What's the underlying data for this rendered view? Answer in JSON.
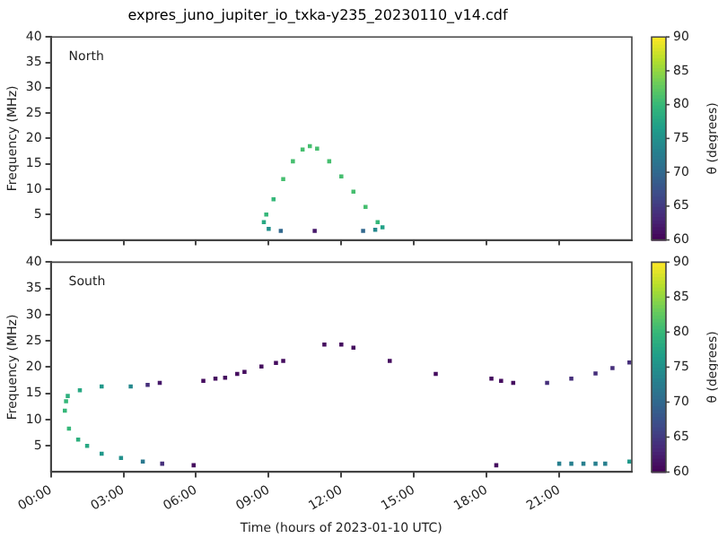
{
  "chart_data": [
    {
      "type": "scatter",
      "title": "expres_juno_jupiter_io_txka-y235_20230110_v14.cdf",
      "ylabel": "Frequency (MHz)",
      "clabel": "θ (degrees)",
      "annotations": [
        "North"
      ],
      "x": [
        8.8,
        8.9,
        9.2,
        9.6,
        10.0,
        10.4,
        10.7,
        11.0,
        11.5,
        12.0,
        12.5,
        13.0,
        13.5,
        13.7,
        13.4,
        12.9,
        10.9,
        9.5,
        9.0
      ],
      "values": [
        3.5,
        5,
        8,
        12,
        15.5,
        17.8,
        18.5,
        18,
        15.5,
        12.5,
        9.5,
        6.5,
        3.5,
        2.5,
        2,
        1.8,
        1.8,
        1.8,
        2.2
      ],
      "cvalues": [
        78,
        80,
        80,
        81,
        81,
        81,
        81,
        81,
        81,
        81,
        81,
        81,
        80,
        77,
        74,
        70,
        62,
        70,
        75
      ],
      "xlim": [
        0,
        24
      ],
      "xticks": [
        {
          "value": 0,
          "label": null
        },
        {
          "value": 3,
          "label": null
        },
        {
          "value": 6,
          "label": null
        },
        {
          "value": 9,
          "label": null
        },
        {
          "value": 12,
          "label": null
        },
        {
          "value": 15,
          "label": null
        },
        {
          "value": 18,
          "label": null
        },
        {
          "value": 21,
          "label": null
        }
      ],
      "ylim": [
        0,
        40
      ],
      "yticks": [
        5,
        10,
        15,
        20,
        25,
        30,
        35,
        40
      ],
      "clim": [
        60,
        90
      ],
      "cticks": [
        60,
        65,
        70,
        75,
        80,
        85,
        90
      ],
      "tick_labels": "y",
      "marker": "square"
    },
    {
      "type": "scatter",
      "xlabel": "Time (hours of 2023-01-10 UTC)",
      "ylabel": "Frequency (MHz)",
      "clabel": "θ (degrees)",
      "annotations": [
        "South"
      ],
      "x": [
        0.58,
        0.63,
        0.75,
        1.13,
        1.5,
        2.1,
        2.9,
        3.8,
        4.6,
        5.9,
        0.7,
        1.2,
        2.1,
        3.3,
        4.0,
        4.5,
        6.3,
        6.8,
        7.2,
        7.7,
        8.0,
        8.7,
        9.3,
        9.6,
        11.3,
        12.0,
        12.5,
        14.0,
        15.9,
        18.2,
        18.6,
        19.1,
        20.5,
        21.5,
        22.5,
        23.2,
        23.9,
        18.4,
        21.0,
        21.5,
        22.0,
        22.5,
        22.9,
        23.9
      ],
      "values": [
        11.7,
        13.5,
        8.3,
        6.2,
        5,
        3.5,
        2.7,
        2,
        1.6,
        1.3,
        14.5,
        15.6,
        16.3,
        16.3,
        16.6,
        17,
        17.4,
        17.8,
        18,
        18.7,
        19.1,
        20.1,
        20.8,
        21.2,
        24.3,
        24.3,
        23.7,
        21.2,
        18.7,
        17.8,
        17.4,
        17,
        17,
        17.8,
        18.8,
        19.8,
        20.9,
        1.3,
        1.6,
        1.6,
        1.6,
        1.6,
        1.6,
        2
      ],
      "cvalues": [
        80,
        80,
        80,
        79,
        78,
        76,
        75,
        72,
        64,
        61,
        79,
        78,
        76,
        74,
        64,
        62,
        61,
        61,
        61,
        61,
        61,
        61,
        61,
        61,
        61,
        61,
        61,
        61,
        61,
        61,
        61,
        61,
        64,
        64,
        64,
        64,
        64,
        61,
        73,
        73,
        73,
        73,
        73,
        76
      ],
      "xlim": [
        0,
        24
      ],
      "xticks": [
        {
          "value": 0,
          "label": "00:00"
        },
        {
          "value": 3,
          "label": "03:00"
        },
        {
          "value": 6,
          "label": "06:00"
        },
        {
          "value": 9,
          "label": "09:00"
        },
        {
          "value": 12,
          "label": "12:00"
        },
        {
          "value": 15,
          "label": "15:00"
        },
        {
          "value": 18,
          "label": "18:00"
        },
        {
          "value": 21,
          "label": "21:00"
        }
      ],
      "ylim": [
        0,
        40
      ],
      "yticks": [
        5,
        10,
        15,
        20,
        25,
        30,
        35,
        40
      ],
      "clim": [
        60,
        90
      ],
      "cticks": [
        60,
        65,
        70,
        75,
        80,
        85,
        90
      ],
      "marker": "square"
    }
  ]
}
